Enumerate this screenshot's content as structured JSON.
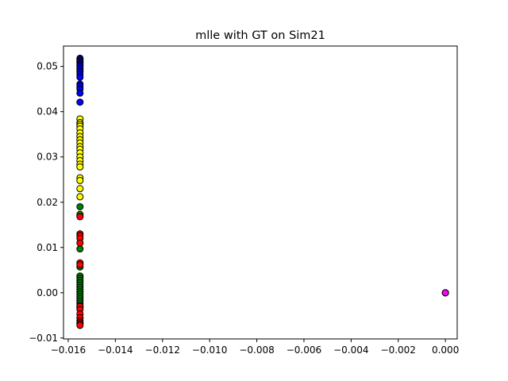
{
  "chart_data": {
    "type": "scatter",
    "title": "mlle with GT on Sim21",
    "xlabel": "",
    "ylabel": "",
    "xlim": [
      -0.0162,
      0.0005
    ],
    "ylim": [
      -0.0102,
      0.0545
    ],
    "grid": false,
    "x_ticks": [
      -0.016,
      -0.014,
      -0.012,
      -0.01,
      -0.008,
      -0.006,
      -0.004,
      -0.002,
      0.0
    ],
    "x_tick_labels": [
      "−0.016",
      "−0.014",
      "−0.012",
      "−0.010",
      "−0.008",
      "−0.006",
      "−0.004",
      "−0.002",
      "0.000"
    ],
    "y_ticks": [
      -0.01,
      0.0,
      0.01,
      0.02,
      0.03,
      0.04,
      0.05
    ],
    "y_tick_labels": [
      "−0.01",
      "0.00",
      "0.01",
      "0.02",
      "0.03",
      "0.04",
      "0.05"
    ],
    "marker_edge_color": "#000000",
    "series": [
      {
        "color": "#0000ff",
        "x": [
          -0.0155,
          -0.0155,
          -0.0155,
          -0.0155,
          -0.0155,
          -0.0155,
          -0.0155,
          -0.0155,
          -0.0155,
          -0.0155,
          -0.0155,
          -0.0155,
          -0.0155,
          -0.0155,
          -0.0155,
          -0.0155,
          -0.0155
        ],
        "y": [
          0.0518,
          0.0515,
          0.0512,
          0.0509,
          0.0506,
          0.0503,
          0.05,
          0.0496,
          0.0492,
          0.0488,
          0.0482,
          0.0476,
          0.0461,
          0.0456,
          0.045,
          0.0441,
          0.0421
        ]
      },
      {
        "color": "#ffff00",
        "x": [
          -0.0155,
          -0.0155,
          -0.0155,
          -0.0155,
          -0.0155,
          -0.0155,
          -0.0155,
          -0.0155,
          -0.0155,
          -0.0155,
          -0.0155,
          -0.0155,
          -0.0155,
          -0.0155,
          -0.0155,
          -0.0155,
          -0.0155,
          -0.0155,
          -0.0155,
          -0.0155
        ],
        "y": [
          0.0384,
          0.0376,
          0.0372,
          0.0368,
          0.0362,
          0.0353,
          0.0345,
          0.0338,
          0.0331,
          0.0323,
          0.0317,
          0.0309,
          0.03,
          0.0292,
          0.0284,
          0.0278,
          0.0254,
          0.0248,
          0.023,
          0.0212
        ]
      },
      {
        "color": "#008000",
        "x": [
          -0.0155,
          -0.0155,
          -0.0155,
          -0.0155,
          -0.0155,
          -0.0155,
          -0.0155,
          -0.0155,
          -0.0155,
          -0.0155,
          -0.0155,
          -0.0155,
          -0.0155,
          -0.0155,
          -0.0155,
          -0.0155,
          -0.0155,
          -0.0155,
          -0.0155
        ],
        "y": [
          0.019,
          0.0173,
          0.0097,
          0.0057,
          0.0037,
          0.0032,
          0.0027,
          0.0022,
          0.0017,
          0.0012,
          0.0007,
          0.0002,
          -0.0003,
          -0.0008,
          -0.0013,
          -0.0018,
          -0.0023,
          -0.0028,
          -0.0033
        ]
      },
      {
        "color": "#ff0000",
        "x": [
          -0.0155,
          -0.0155,
          -0.0155,
          -0.0155,
          -0.0155,
          -0.0155,
          -0.0155,
          -0.0155,
          -0.0155,
          -0.0155,
          -0.0155,
          -0.0155,
          -0.0155,
          -0.0155,
          -0.0155
        ],
        "y": [
          0.0168,
          0.013,
          0.0126,
          0.012,
          0.011,
          0.0066,
          0.0062,
          -0.003,
          -0.0037,
          -0.0047,
          -0.0055,
          -0.0062,
          -0.0066,
          -0.0069,
          -0.0072
        ]
      },
      {
        "color": "#ff00ff",
        "x": [
          0.0,
          0.0,
          0.0
        ],
        "y": [
          0.0,
          0.0,
          0.0
        ]
      }
    ]
  }
}
